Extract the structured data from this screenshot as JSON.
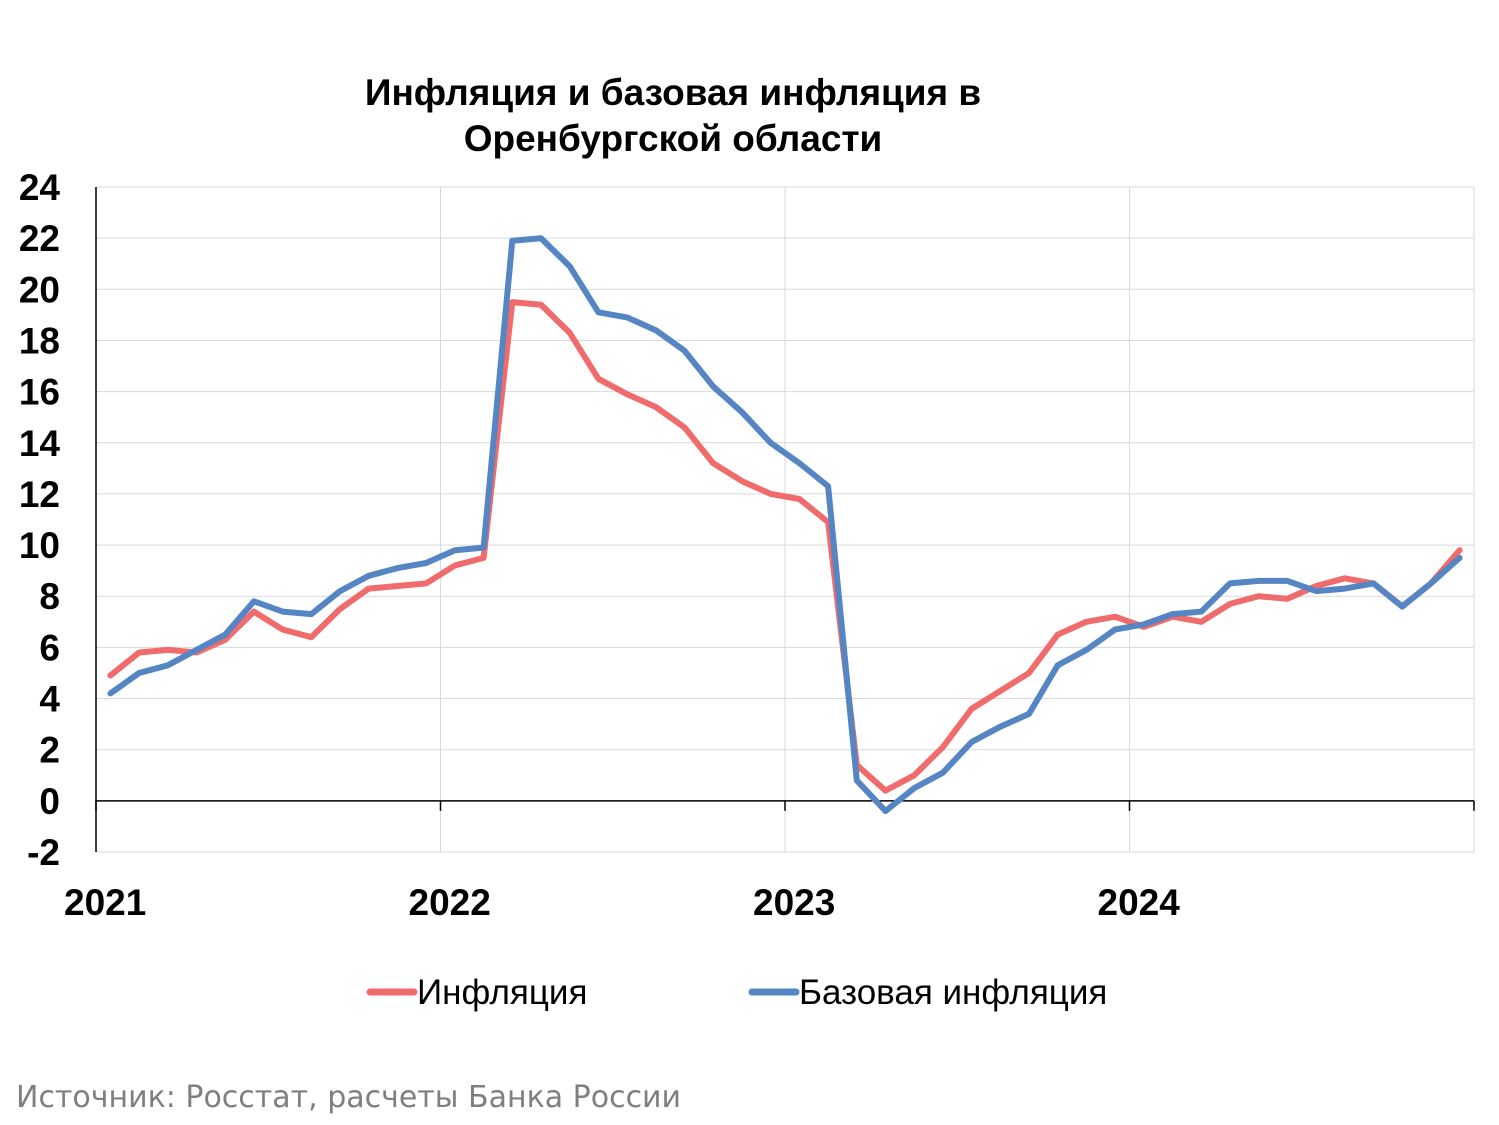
{
  "title_line1": "Инфляция и базовая инфляция в",
  "title_line2": "Оренбургской области",
  "source": "Источник: Росстат, расчеты Банка России",
  "chart_data": {
    "type": "line",
    "title": "Инфляция и базовая инфляция в Оренбургской области",
    "ylim": [
      -2,
      24
    ],
    "yticks": [
      "24",
      "22",
      "20",
      "18",
      "16",
      "14",
      "12",
      "10",
      "8",
      "6",
      "4",
      "2",
      "0",
      "-2"
    ],
    "xticks": [
      "2021",
      "2022",
      "2023",
      "2024"
    ],
    "x": [
      "2021-01",
      "2021-02",
      "2021-03",
      "2021-04",
      "2021-05",
      "2021-06",
      "2021-07",
      "2021-08",
      "2021-09",
      "2021-10",
      "2021-11",
      "2021-12",
      "2022-01",
      "2022-02",
      "2022-03",
      "2022-04",
      "2022-05",
      "2022-06",
      "2022-07",
      "2022-08",
      "2022-09",
      "2022-10",
      "2022-11",
      "2022-12",
      "2023-01",
      "2023-02",
      "2023-03",
      "2023-04",
      "2023-05",
      "2023-06",
      "2023-07",
      "2023-08",
      "2023-09",
      "2023-10",
      "2023-11",
      "2023-12",
      "2024-01",
      "2024-02",
      "2024-03",
      "2024-04",
      "2024-05",
      "2024-06",
      "2024-07",
      "2024-08",
      "2024-09",
      "2024-10",
      "2024-11",
      "2024-12"
    ],
    "grid": true,
    "legend_position": "bottom",
    "series": [
      {
        "name": "Инфляция",
        "color": "#f06b6b",
        "values": [
          4.9,
          5.8,
          5.9,
          5.8,
          6.3,
          7.4,
          6.7,
          6.4,
          7.5,
          8.3,
          8.4,
          8.5,
          9.2,
          9.5,
          19.5,
          19.4,
          18.3,
          16.5,
          15.9,
          15.4,
          14.6,
          13.2,
          12.5,
          12.0,
          11.8,
          10.9,
          1.4,
          0.4,
          1.0,
          2.1,
          3.6,
          4.3,
          5.0,
          6.5,
          7.0,
          7.2,
          6.8,
          7.2,
          7.0,
          7.7,
          8.0,
          7.9,
          8.4,
          8.7,
          8.5,
          7.6,
          8.5,
          9.8
        ]
      },
      {
        "name": "Базовая инфляция",
        "color": "#5585c2",
        "values": [
          4.2,
          5.0,
          5.3,
          5.9,
          6.5,
          7.8,
          7.4,
          7.3,
          8.2,
          8.8,
          9.1,
          9.3,
          9.8,
          9.9,
          21.9,
          22.0,
          20.9,
          19.1,
          18.9,
          18.4,
          17.6,
          16.2,
          15.2,
          14.0,
          13.2,
          12.3,
          0.8,
          -0.4,
          0.5,
          1.1,
          2.3,
          2.9,
          3.4,
          5.3,
          5.9,
          6.7,
          6.9,
          7.3,
          7.4,
          8.5,
          8.6,
          8.6,
          8.2,
          8.3,
          8.5,
          7.6,
          8.5,
          9.5
        ]
      }
    ]
  }
}
